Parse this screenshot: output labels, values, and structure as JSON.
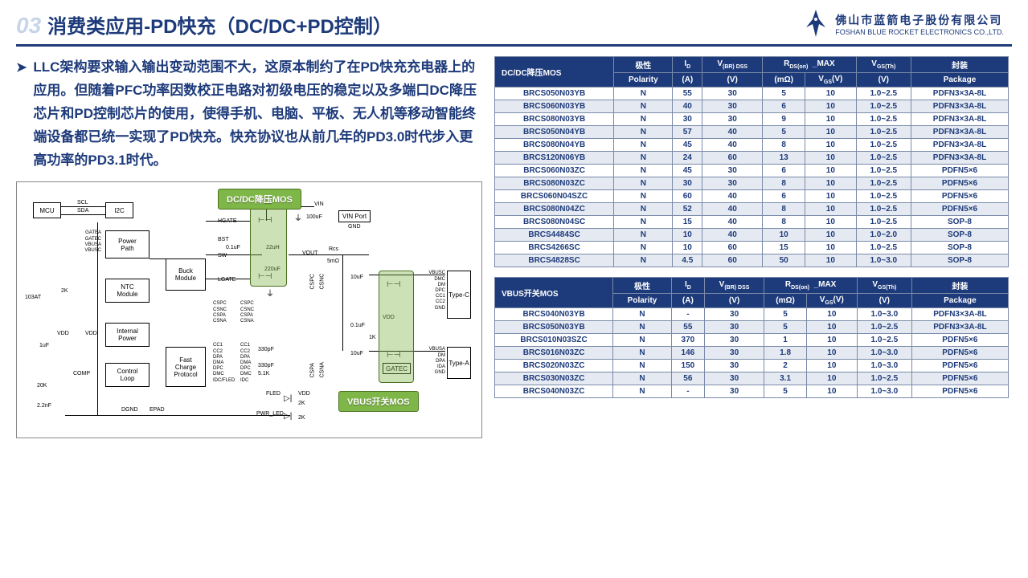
{
  "header": {
    "chapter_num": "03",
    "title": "消费类应用-PD快充（DC/DC+PD控制）",
    "logo_cn": "佛山市蓝箭电子股份有限公司",
    "logo_en": "FOSHAN BLUE ROCKET ELECTRONICS CO.,LTD."
  },
  "bullet": "LLC架构要求输入输出变动范围不大，这原本制约了在PD快充充电器上的应用。但随着PFC功率因数校正电路对初级电压的稳定以及多端口DC降压芯片和PD控制芯片的使用，使得手机、电脑、平板、无人机等移动智能终端设备都已统一实现了PD快充。快充协议也从前几年的PD3.0时代步入更高功率的PD3.1时代。",
  "diagram": {
    "callout1": "DC/DC降压MOS",
    "callout2": "VBUS开关MOS",
    "blocks": {
      "mcu": "MCU",
      "i2c": "I2C",
      "power_path": "Power\nPath",
      "buck": "Buck\nModule",
      "ntc": "NTC\nModule",
      "internal": "Internal\nPower",
      "control": "Control\nLoop",
      "fast": "Fast\nCharge\nProtocol",
      "typec": "Type-C",
      "typea": "Type-A",
      "ff": "",
      "f2": ""
    },
    "labels": {
      "scl": "SCL",
      "sda": "SDA",
      "gatea": "GATEA",
      "gatec": "GATEC",
      "vbusa": "VBUSA",
      "vbusc": "VBUSC",
      "r103": "103AT",
      "r2k": "2K",
      "vdd": "VDD",
      "comp": "COMP",
      "r20k": "20K",
      "c22n": "2.2nF",
      "c1u": "1uF",
      "dgnd": "DGND",
      "epad": "EPAD",
      "hgate": "HGATE",
      "bst": "BST",
      "sw": "SW",
      "lgate": "LGATE",
      "c01u": "0.1uF",
      "c100u": "100uF",
      "l22u": "22uH",
      "c220u": "220uF",
      "vin": "VIN",
      "vinport": "VIN Port",
      "gnd": "GND",
      "cspc": "CSPC",
      "csnc": "CSNC",
      "cspa": "CSPA",
      "csna": "CSNA",
      "cc1": "CC1",
      "cc2": "CC2",
      "dpa": "DPA",
      "dma": "DMA",
      "dpc": "DPC",
      "dmc": "DMC",
      "idc": "IDC/FLED",
      "fled": "FLED",
      "pwr": "PWR_LED",
      "r330": "330pF",
      "r51k": "5.1K",
      "vout": "VOUT",
      "rcs": "Rcs",
      "r5m": "5mΩ",
      "c10u": "10uF",
      "c01u2": "0.1uF",
      "r1k": "1K",
      "r2k2": "2K",
      "r2k3": "2K",
      "vdd2": "VDD",
      "gatec2": "GATEC",
      "gatea2": "GATEA",
      "dm": "DM",
      "dp": "DP",
      "ida": "IDA",
      "cc1r": "CC1",
      "cc2r": "CC2",
      "gnd2": "GND",
      "vbusc2": "VBUSC",
      "dmc2": "DMC",
      "dm2": "DM",
      "dpdn": "DPA\nDMA",
      "vbusa2": "VBUSA"
    }
  },
  "table1": {
    "title": "DC/DC降压MOS",
    "head_top": [
      "极性",
      "I",
      "V",
      "R",
      "",
      "V",
      "封装"
    ],
    "head_top_sub": [
      "",
      "D",
      "(BR) DSS",
      "DS(on)",
      "_MAX",
      "GS(Th)",
      ""
    ],
    "head_bot": [
      "Polarity",
      "(A)",
      "(V)",
      "(mΩ)",
      "V",
      "(V)",
      "Package"
    ],
    "head_bot_sub": [
      "",
      "",
      "",
      "",
      "GS(V)",
      "",
      ""
    ],
    "rows": [
      [
        "BRCS050N03YB",
        "N",
        "55",
        "30",
        "5",
        "10",
        "1.0~2.5",
        "PDFN3×3A-8L"
      ],
      [
        "BRCS060N03YB",
        "N",
        "40",
        "30",
        "6",
        "10",
        "1.0~2.5",
        "PDFN3×3A-8L"
      ],
      [
        "BRCS080N03YB",
        "N",
        "30",
        "30",
        "9",
        "10",
        "1.0~2.5",
        "PDFN3×3A-8L"
      ],
      [
        "BRCS050N04YB",
        "N",
        "57",
        "40",
        "5",
        "10",
        "1.0~2.5",
        "PDFN3×3A-8L"
      ],
      [
        "BRCS080N04YB",
        "N",
        "45",
        "40",
        "8",
        "10",
        "1.0~2.5",
        "PDFN3×3A-8L"
      ],
      [
        "BRCS120N06YB",
        "N",
        "24",
        "60",
        "13",
        "10",
        "1.0~2.5",
        "PDFN3×3A-8L"
      ],
      [
        "BRCS060N03ZC",
        "N",
        "45",
        "30",
        "6",
        "10",
        "1.0~2.5",
        "PDFN5×6"
      ],
      [
        "BRCS080N03ZC",
        "N",
        "30",
        "30",
        "8",
        "10",
        "1.0~2.5",
        "PDFN5×6"
      ],
      [
        "BRCS060N04SZC",
        "N",
        "60",
        "40",
        "6",
        "10",
        "1.0~2.5",
        "PDFN5×6"
      ],
      [
        "BRCS080N04ZC",
        "N",
        "52",
        "40",
        "8",
        "10",
        "1.0~2.5",
        "PDFN5×6"
      ],
      [
        "BRCS080N04SC",
        "N",
        "15",
        "40",
        "8",
        "10",
        "1.0~2.5",
        "SOP-8"
      ],
      [
        "BRCS4484SC",
        "N",
        "10",
        "40",
        "10",
        "10",
        "1.0~2.0",
        "SOP-8"
      ],
      [
        "BRCS4266SC",
        "N",
        "10",
        "60",
        "15",
        "10",
        "1.0~2.5",
        "SOP-8"
      ],
      [
        "BRCS4828SC",
        "N",
        "4.5",
        "60",
        "50",
        "10",
        "1.0~3.0",
        "SOP-8"
      ]
    ]
  },
  "table2": {
    "title": "VBUS开关MOS",
    "rows": [
      [
        "BRCS040N03YB",
        "N",
        "-",
        "30",
        "5",
        "10",
        "1.0~3.0",
        "PDFN3×3A-8L"
      ],
      [
        "BRCS050N03YB",
        "N",
        "55",
        "30",
        "5",
        "10",
        "1.0~2.5",
        "PDFN3×3A-8L"
      ],
      [
        "BRCS010N03SZC",
        "N",
        "370",
        "30",
        "1",
        "10",
        "1.0~2.5",
        "PDFN5×6"
      ],
      [
        "BRCS016N03ZC",
        "N",
        "146",
        "30",
        "1.8",
        "10",
        "1.0~3.0",
        "PDFN5×6"
      ],
      [
        "BRCS020N03ZC",
        "N",
        "150",
        "30",
        "2",
        "10",
        "1.0~3.0",
        "PDFN5×6"
      ],
      [
        "BRCS030N03ZC",
        "N",
        "56",
        "30",
        "3.1",
        "10",
        "1.0~2.5",
        "PDFN5×6"
      ],
      [
        "BRCS040N03ZC",
        "N",
        "-",
        "30",
        "5",
        "10",
        "1.0~3.0",
        "PDFN5×6"
      ]
    ]
  },
  "colors": {
    "brand": "#1d3a7a",
    "accent": "#7fb648",
    "row_alt": "#e5eaf2"
  }
}
